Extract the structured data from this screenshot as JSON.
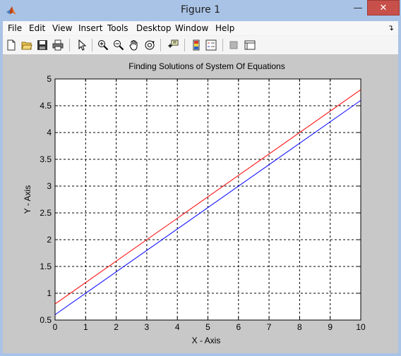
{
  "window": {
    "title": "Figure 1",
    "min_glyph": "—",
    "max_glyph": "☐",
    "close_glyph": "✕"
  },
  "menu": {
    "items": [
      "File",
      "Edit",
      "View",
      "Insert",
      "Tools",
      "Desktop",
      "Window",
      "Help"
    ],
    "dock_arrow": "↴"
  },
  "toolbar": {
    "buttons": [
      "new-figure-icon",
      "open-file-icon",
      "save-icon",
      "print-icon",
      "pointer-arrow-icon",
      "zoom-in-icon",
      "zoom-out-icon",
      "pan-hand-icon",
      "rotate-3d-icon",
      "data-cursor-icon",
      "colorbar-icon",
      "legend-icon",
      "hide-plot-tools-icon",
      "show-plot-tools-icon"
    ]
  },
  "colors": {
    "series1": "#ff0000",
    "series2": "#0000ff",
    "close": "#c7504b",
    "figure_bg": "#c8c8c8"
  },
  "chart_data": {
    "type": "line",
    "title": "Finding Solutions of System Of Equations",
    "xlabel": "X - Axis",
    "ylabel": "Y - Axis",
    "xlim": [
      0,
      10
    ],
    "ylim": [
      0.5,
      5
    ],
    "xticks": [
      "0",
      "1",
      "2",
      "3",
      "4",
      "5",
      "6",
      "7",
      "8",
      "9",
      "10"
    ],
    "yticks": [
      "0.5",
      "1",
      "1.5",
      "2",
      "2.5",
      "3",
      "3.5",
      "4",
      "4.5",
      "5"
    ],
    "grid": true,
    "grid_style": "dashed",
    "series": [
      {
        "color": "#ff0000",
        "x": [
          0,
          10
        ],
        "y": [
          0.8,
          4.8
        ]
      },
      {
        "color": "#0000ff",
        "x": [
          0,
          10
        ],
        "y": [
          0.6,
          4.6
        ]
      }
    ]
  }
}
